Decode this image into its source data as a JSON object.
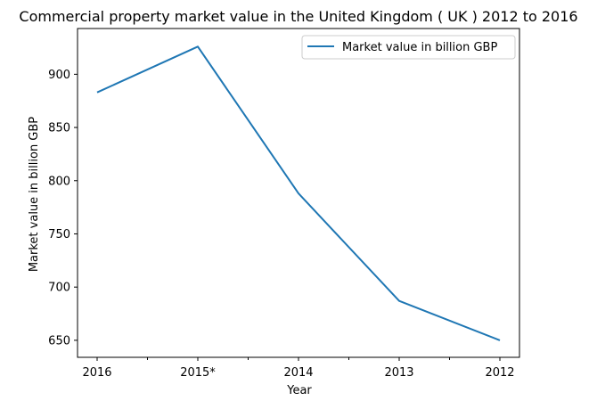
{
  "chart_data": {
    "type": "line",
    "title": "Commercial property market value in the United Kingdom ( UK ) 2012 to 2016",
    "xlabel": "Year",
    "ylabel": "Market value in billion GBP",
    "categories": [
      "2016",
      "2015*",
      "2014",
      "2013",
      "2012"
    ],
    "series": [
      {
        "name": "Market value in billion GBP",
        "values": [
          883,
          926,
          788,
          687,
          650
        ],
        "color": "#1f77b4"
      }
    ],
    "yticks": [
      650,
      700,
      750,
      800,
      850,
      900
    ],
    "ylim": [
      634,
      943
    ],
    "grid": false,
    "legend_position": "top-right"
  }
}
